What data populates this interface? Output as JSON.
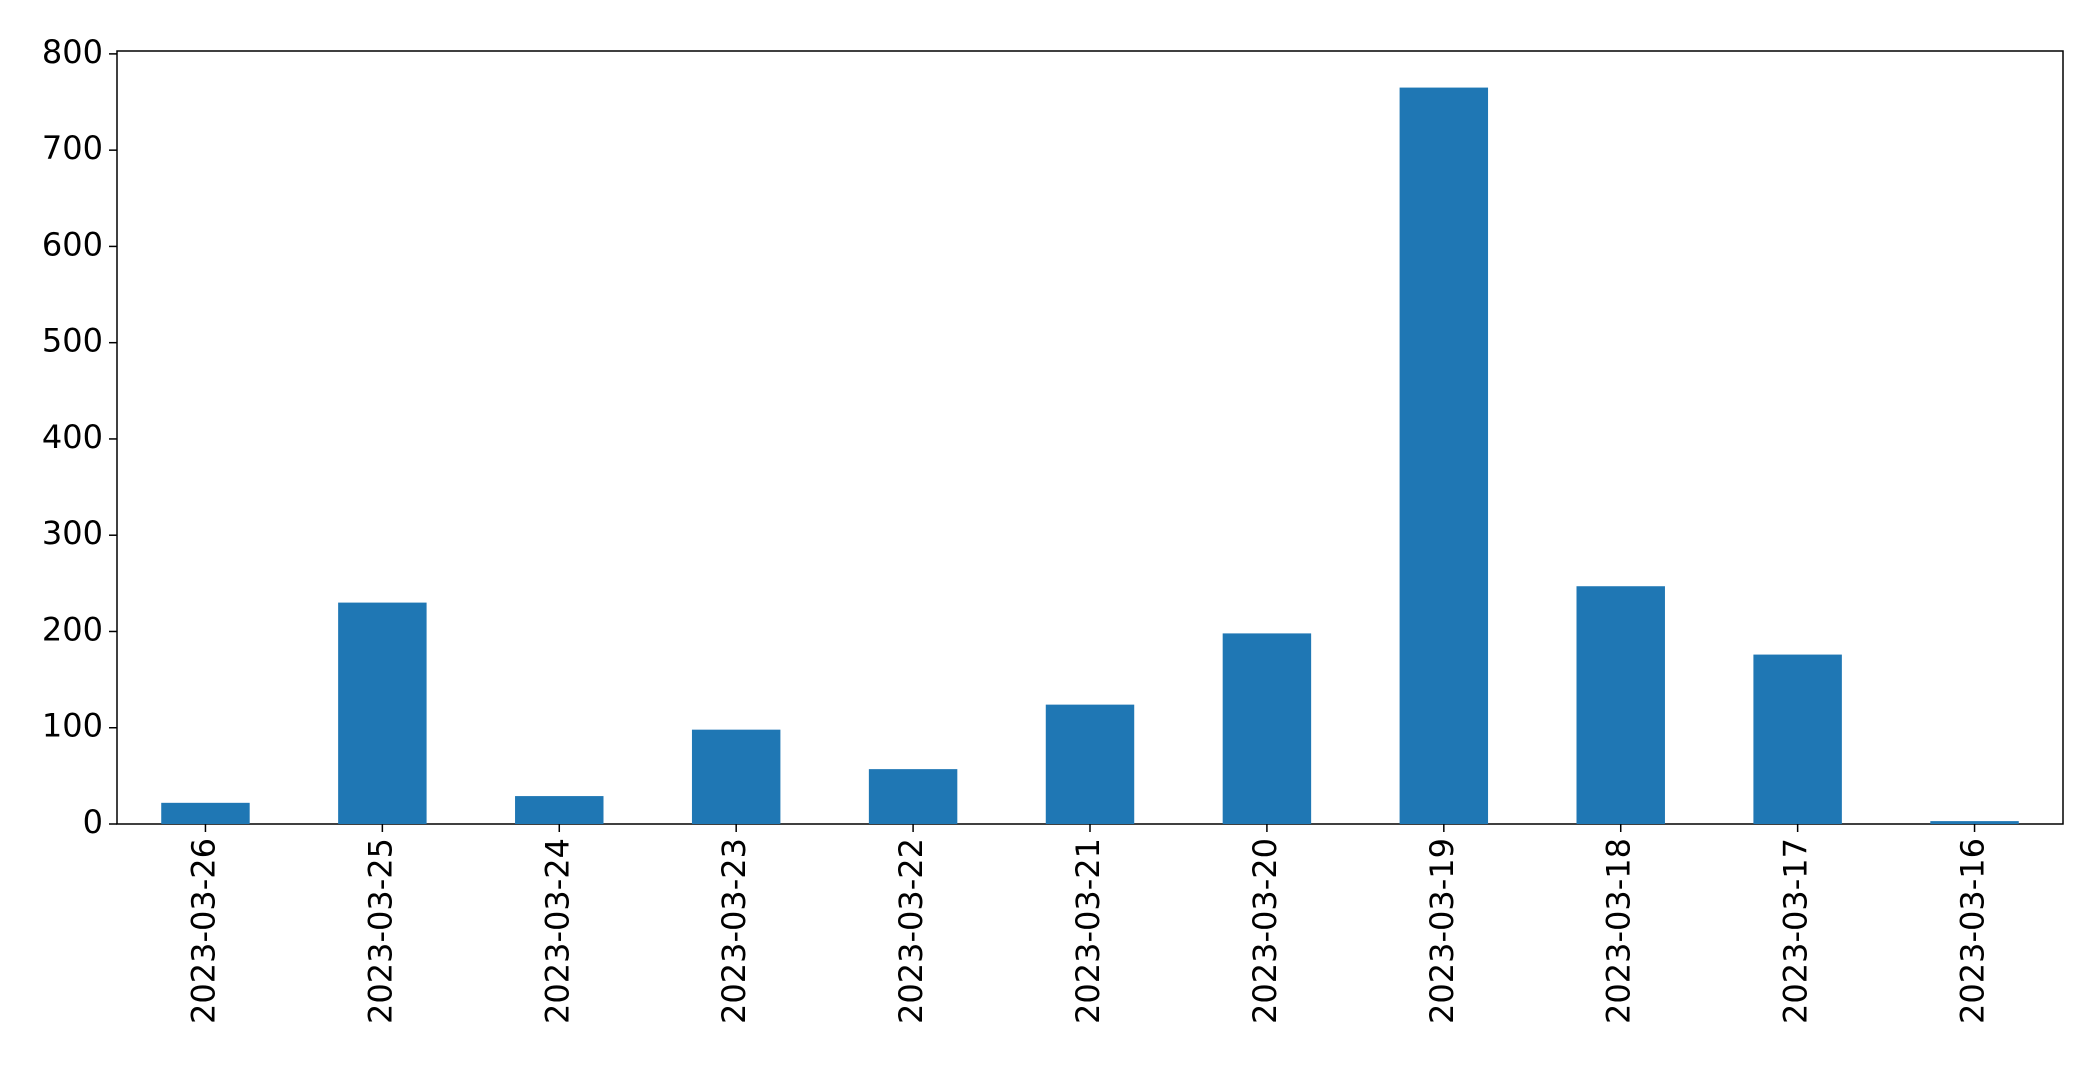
{
  "chart_data": {
    "type": "bar",
    "categories": [
      "2023-03-26",
      "2023-03-25",
      "2023-03-24",
      "2023-03-23",
      "2023-03-22",
      "2023-03-21",
      "2023-03-20",
      "2023-03-19",
      "2023-03-18",
      "2023-03-17",
      "2023-03-16"
    ],
    "values": [
      22,
      230,
      29,
      98,
      57,
      124,
      198,
      765,
      247,
      176,
      3
    ],
    "color": "#1f77b4",
    "ylim": [
      0,
      803
    ],
    "yticks": [
      0,
      100,
      200,
      300,
      400,
      500,
      600,
      700,
      800
    ],
    "grid": false
  }
}
